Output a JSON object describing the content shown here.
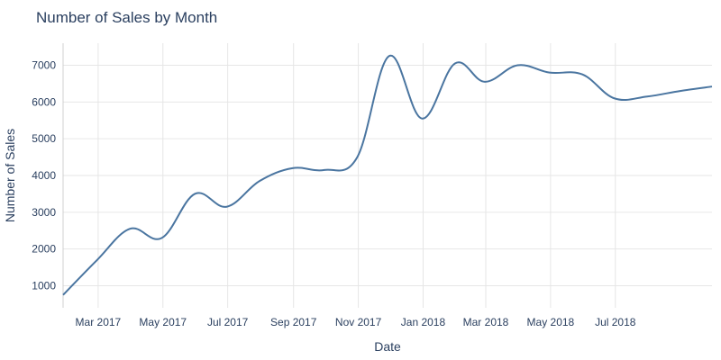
{
  "chart_data": {
    "type": "line",
    "title": "Number of Sales by Month",
    "xlabel": "Date",
    "ylabel": "Number of Sales",
    "ylim": [
      400,
      7600
    ],
    "xlim": [
      "2017-01-27",
      "2018-09-30"
    ],
    "y_ticks": [
      1000,
      2000,
      3000,
      4000,
      5000,
      6000,
      7000
    ],
    "x_ticks": [
      {
        "date": "2017-03-01",
        "label": "Mar 2017"
      },
      {
        "date": "2017-05-01",
        "label": "May 2017"
      },
      {
        "date": "2017-07-01",
        "label": "Jul 2017"
      },
      {
        "date": "2017-09-01",
        "label": "Sep 2017"
      },
      {
        "date": "2017-11-01",
        "label": "Nov 2017"
      },
      {
        "date": "2018-01-01",
        "label": "Jan 2018"
      },
      {
        "date": "2018-03-01",
        "label": "Mar 2018"
      },
      {
        "date": "2018-05-01",
        "label": "May 2018"
      },
      {
        "date": "2018-07-01",
        "label": "Jul 2018"
      }
    ],
    "grid": true,
    "line_shape": "spline",
    "colors": {
      "line": "#4a75a0",
      "grid": "#e6e6e6",
      "text": "#2a3f5f"
    },
    "series": [
      {
        "x": [
          "2017-01-27",
          "2017-02-28",
          "2017-03-31",
          "2017-04-30",
          "2017-05-31",
          "2017-06-30",
          "2017-07-31",
          "2017-08-31",
          "2017-09-30",
          "2017-10-31",
          "2017-11-30",
          "2017-12-31",
          "2018-01-31",
          "2018-02-28",
          "2018-03-31",
          "2018-04-30",
          "2018-05-31",
          "2018-06-30",
          "2018-07-31",
          "2018-08-31",
          "2018-09-30"
        ],
        "values": [
          750,
          1700,
          2550,
          2300,
          3500,
          3150,
          3850,
          4200,
          4150,
          4500,
          7250,
          5550,
          7050,
          6550,
          7000,
          6800,
          6750,
          6100,
          6150,
          6300,
          6420
        ]
      }
    ]
  }
}
